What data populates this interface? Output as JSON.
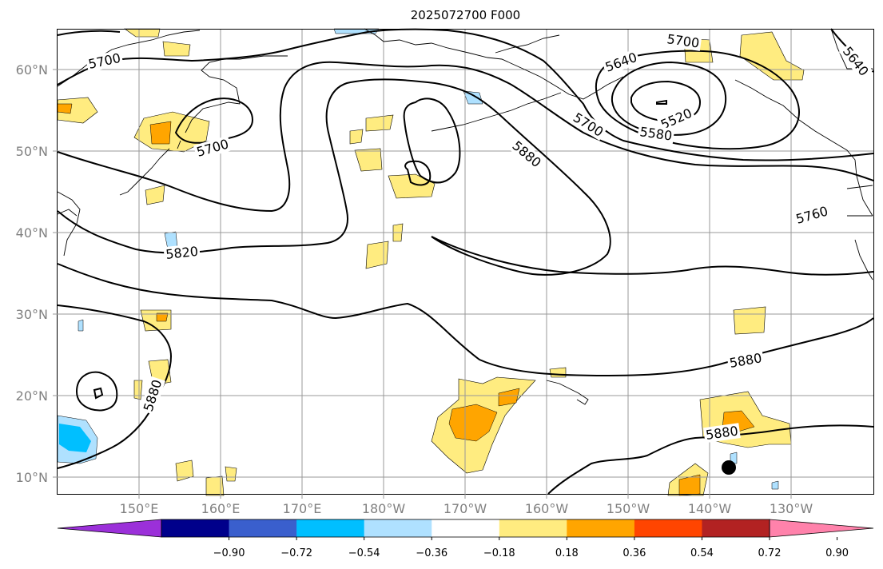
{
  "title": "2025072700 F000",
  "map": {
    "lat_labels": [
      "60°N",
      "50°N",
      "40°N",
      "30°N",
      "20°N",
      "10°N"
    ],
    "lon_labels": [
      "150°E",
      "160°E",
      "170°E",
      "180°W",
      "170°W",
      "160°W",
      "150°W",
      "140°W",
      "130°W"
    ],
    "contour_labels": [
      "5700",
      "5700",
      "5700",
      "5700",
      "5640",
      "5640",
      "5520",
      "5580",
      "5880",
      "5820",
      "5760",
      "5880",
      "5880",
      "5880"
    ],
    "contour_color": "#000000",
    "grid_color": "#999999",
    "coast_color": "#000000",
    "marker": "black-dot"
  },
  "colorbar": {
    "ticks": [
      "−0.90",
      "−0.72",
      "−0.54",
      "−0.36",
      "−0.18",
      "0.18",
      "0.36",
      "0.54",
      "0.72",
      "0.90"
    ],
    "colors": [
      "#9b30d9",
      "#00008b",
      "#3a5fcd",
      "#00bfff",
      "#afe1ff",
      "#ffffff",
      "#ffec80",
      "#ffa500",
      "#ff4500",
      "#b22222",
      "#ff82ab"
    ],
    "extend": "both"
  }
}
